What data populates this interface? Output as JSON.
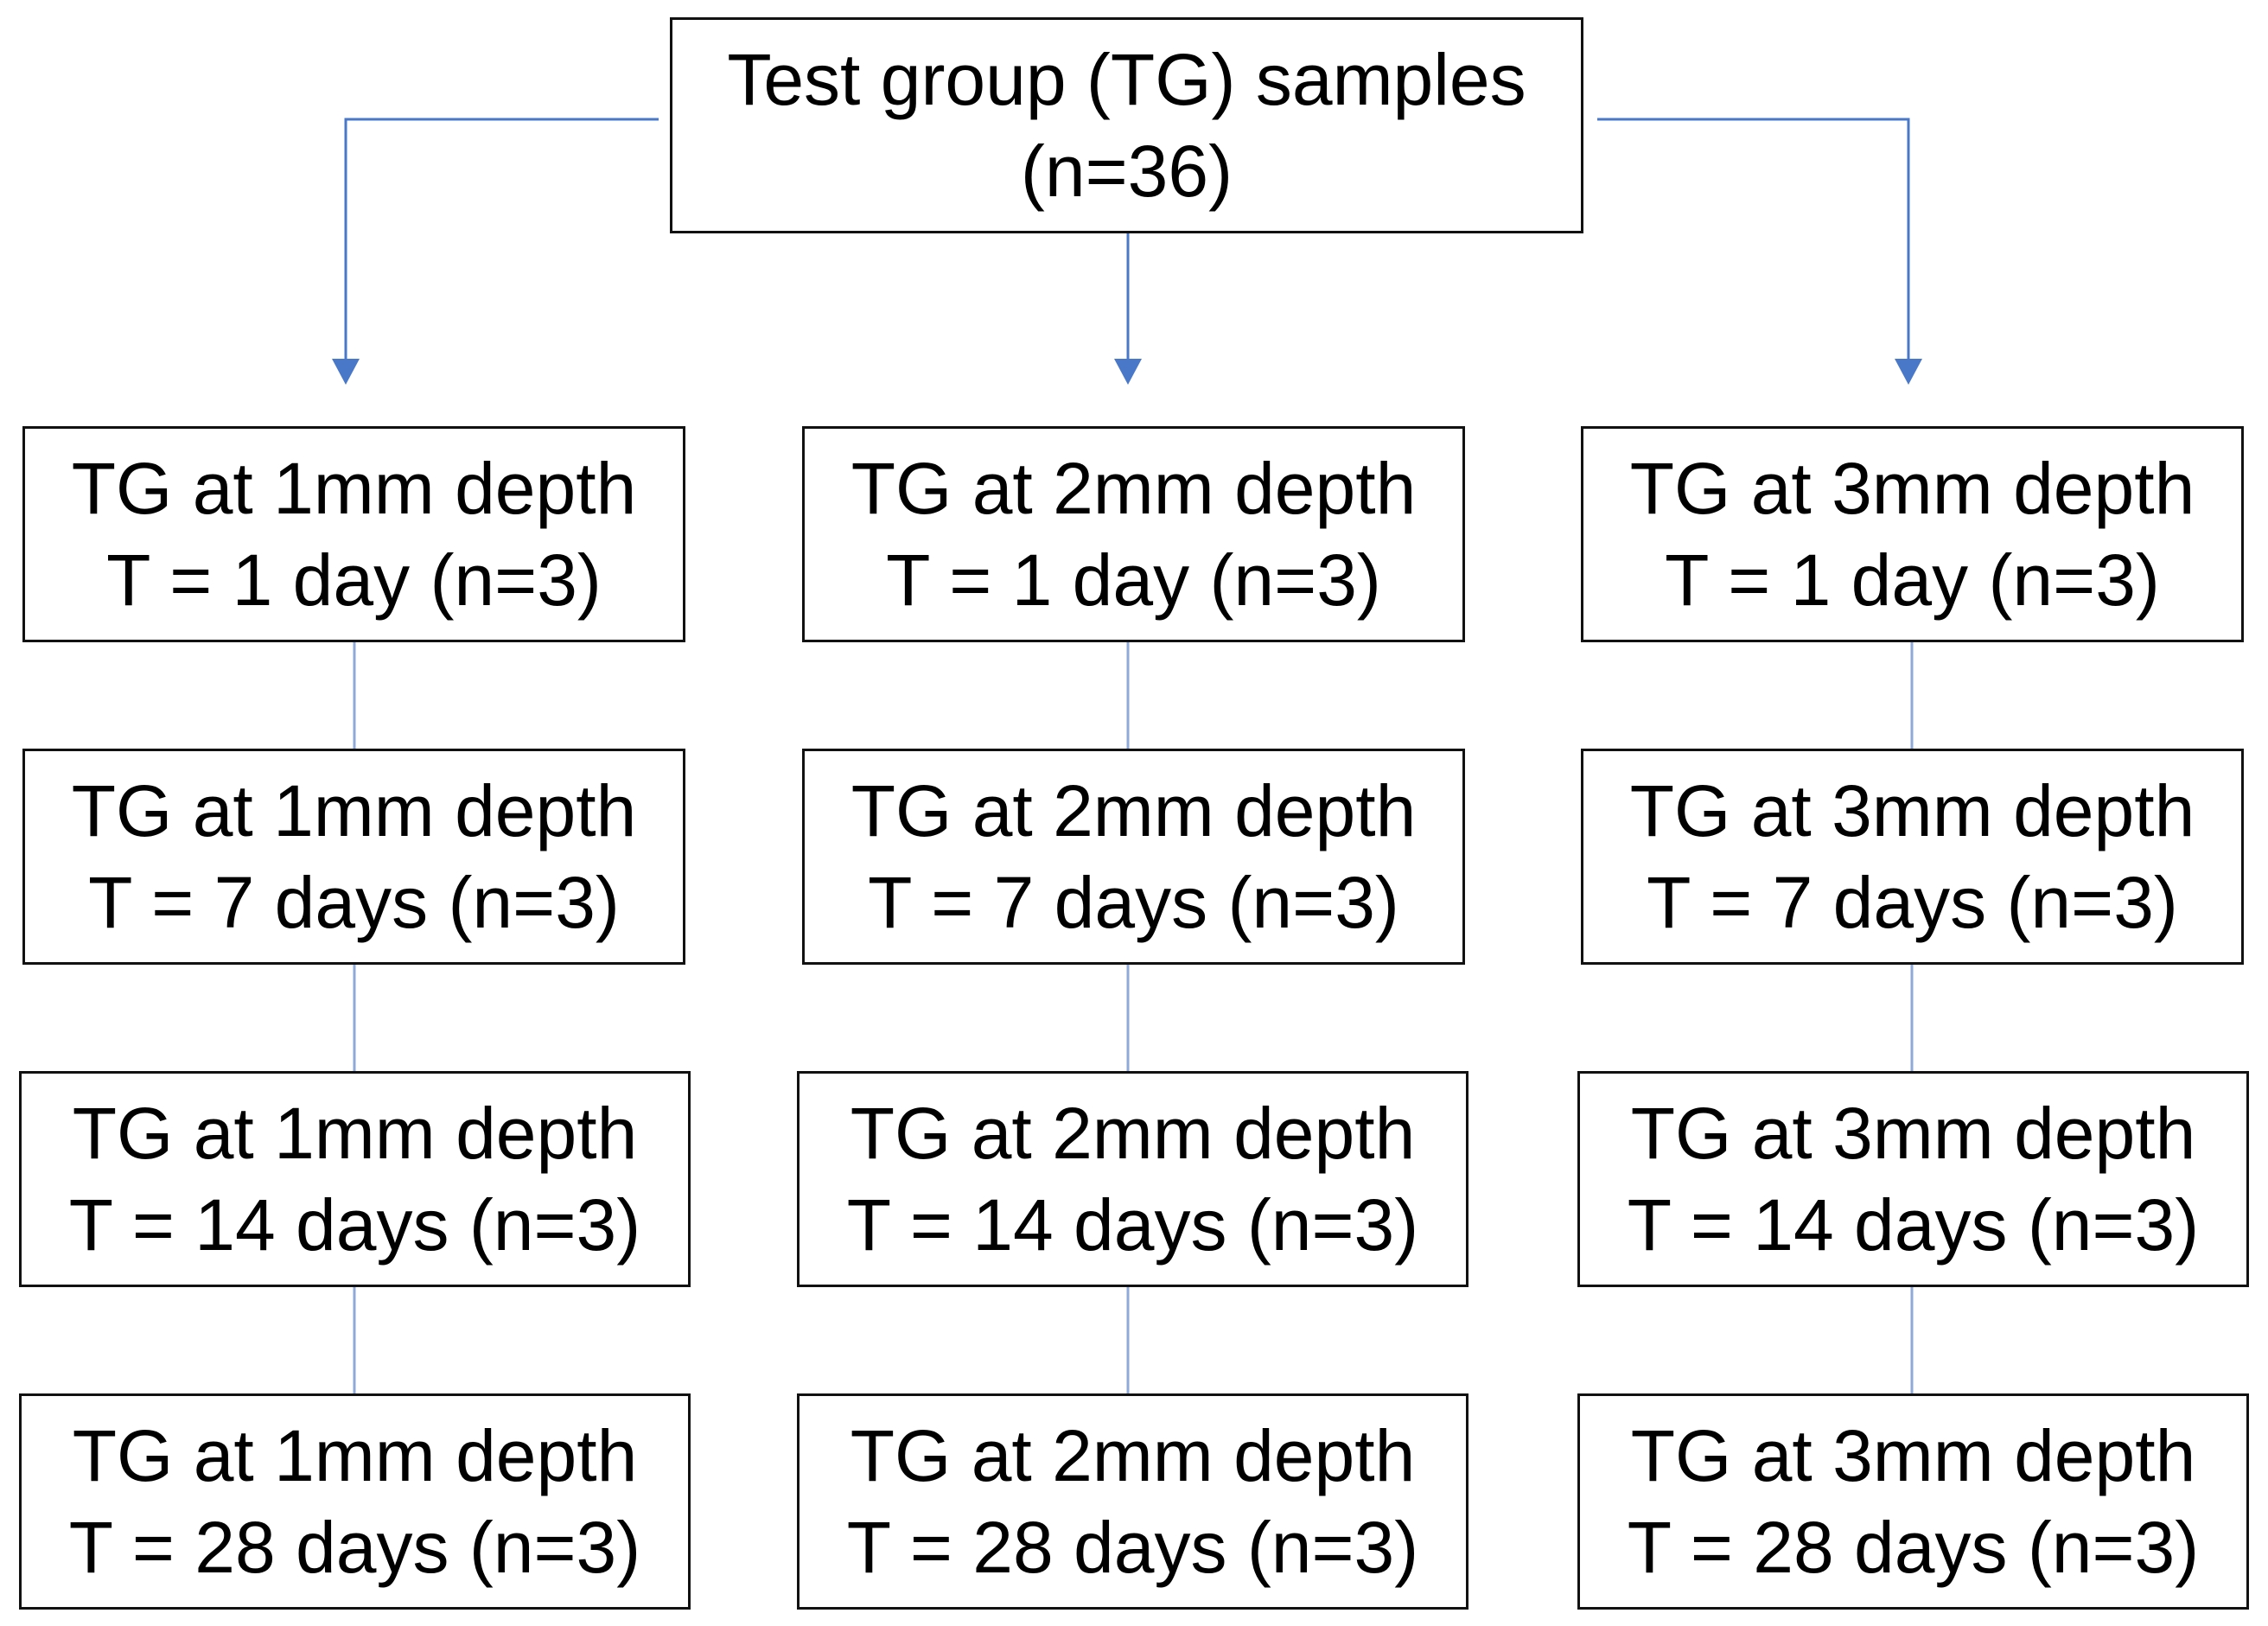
{
  "root": {
    "line1": "Test group (TG) samples",
    "line2": "(n=36)"
  },
  "columns": [
    {
      "name": "TG at 1mm depth",
      "rows": [
        "T = 1 day (n=3)",
        "T = 7 days (n=3)",
        "T = 14 days (n=3)",
        "T = 28 days (n=3)"
      ]
    },
    {
      "name": "TG at 2mm depth",
      "rows": [
        "T = 1 day (n=3)",
        "T = 7 days (n=3)",
        "T = 14 days (n=3)",
        "T = 28 days (n=3)"
      ]
    },
    {
      "name": "TG at 3mm depth",
      "rows": [
        "T = 1 day (n=3)",
        "T = 7 days (n=3)",
        "T = 14 days (n=3)",
        "T = 28 days (n=3)"
      ]
    }
  ],
  "colors": {
    "connector": "#4a78c8",
    "vertical_link": "#8fa9d8",
    "border": "#111111"
  }
}
